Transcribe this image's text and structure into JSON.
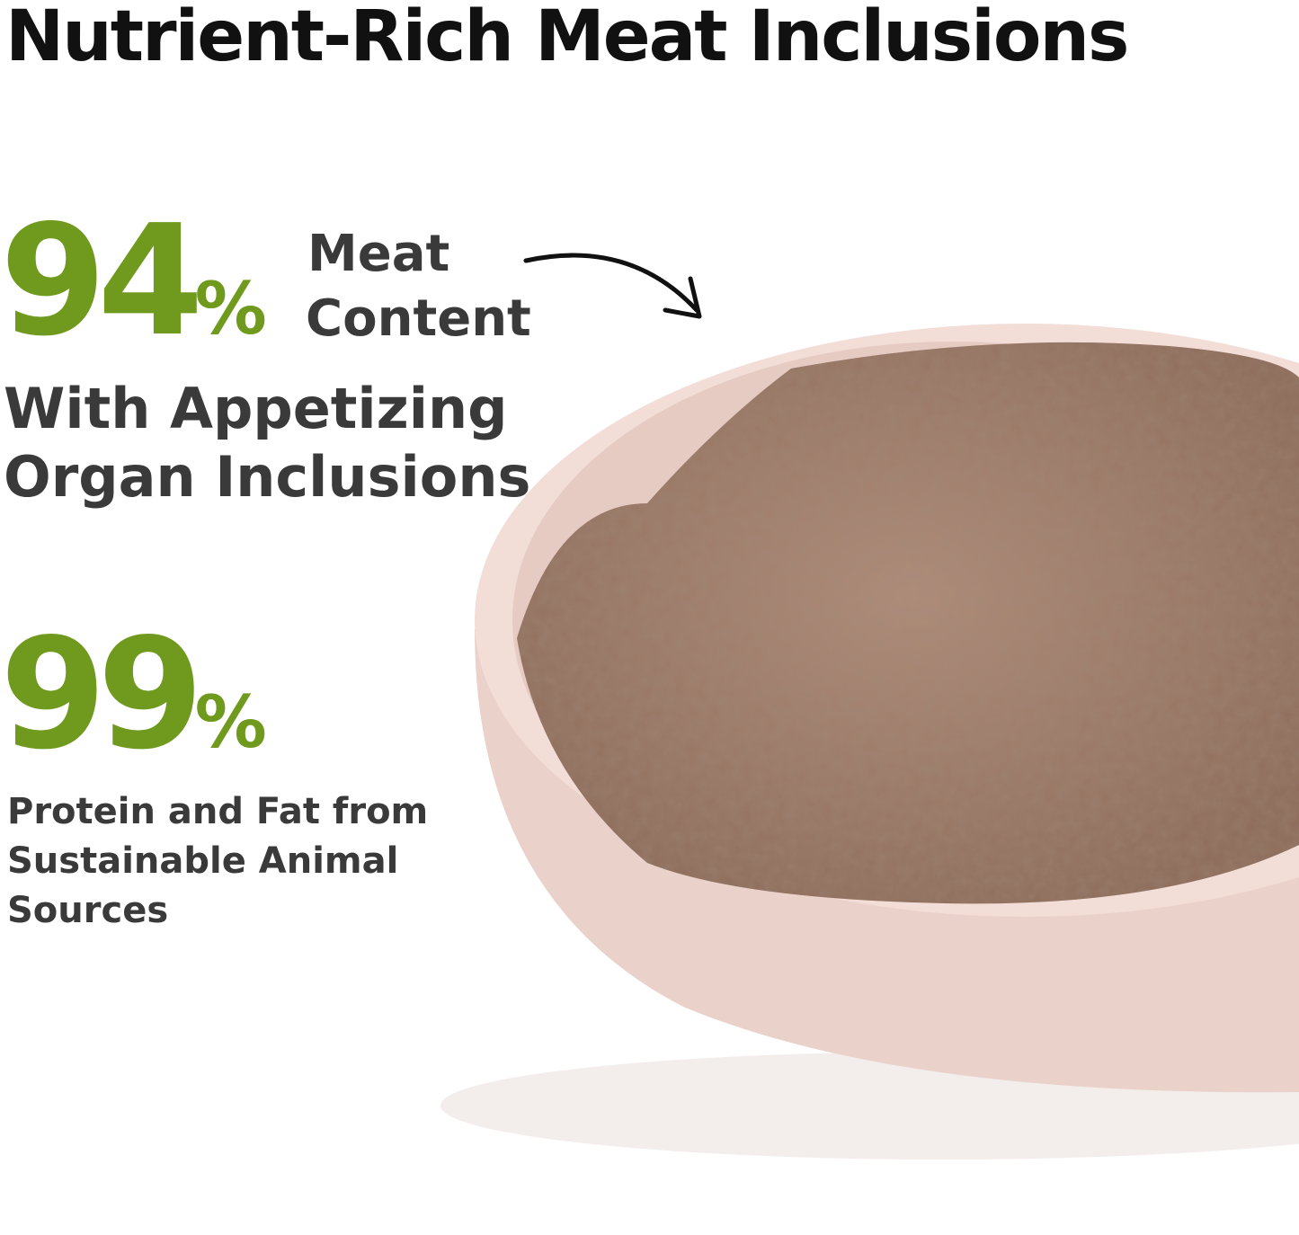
{
  "title": "Nutrient-Rich Meat Inclusions",
  "stat1": {
    "number": "94",
    "unit": "%",
    "label_line1": "Meat",
    "label_line2": "Content",
    "sub_line1": "With Appetizing",
    "sub_line2": "Organ Inclusions"
  },
  "stat2": {
    "number": "99",
    "unit": "%",
    "desc_line1": "Protein and Fat from",
    "desc_line2": "Sustainable Animal",
    "desc_line3": "Sources"
  },
  "colors": {
    "accent": "#6f9a1e",
    "text": "#3a3a3a",
    "bowl": "#f1dcd6",
    "food": "#a07e6b"
  }
}
